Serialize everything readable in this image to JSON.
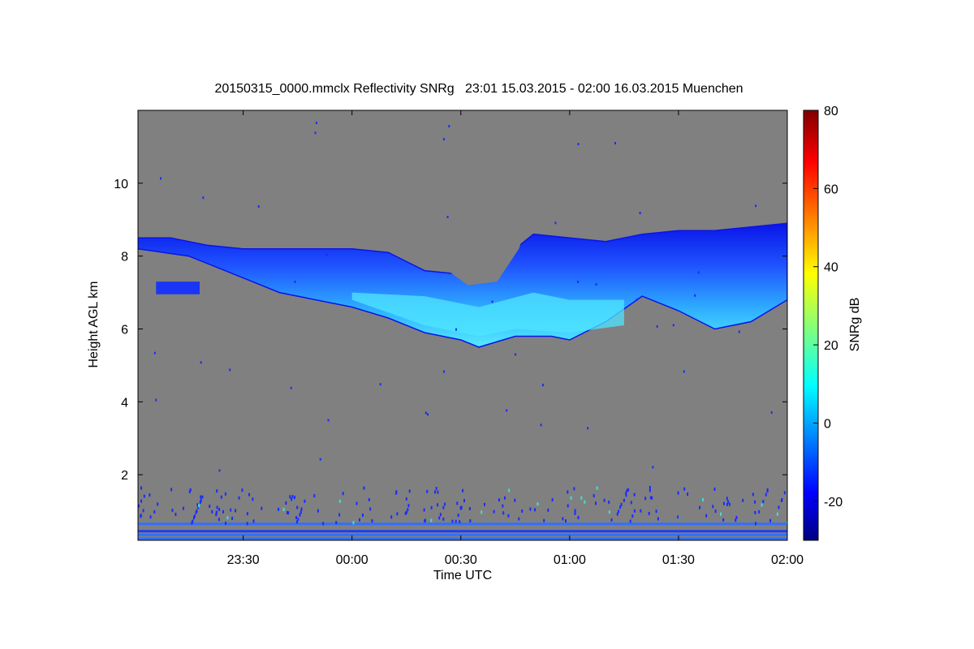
{
  "chart_data": {
    "type": "heatmap",
    "title": "20150315_0000.mmclx Reflectivity SNRg   23:01 15.03.2015 - 02:00 16.03.2015 Muenchen",
    "xlabel": "Time UTC",
    "ylabel": "Height AGL km",
    "colorbar_label": "SNRg dB",
    "x_range_minutes_from_midnight": [
      -59,
      120
    ],
    "x_ticks": [
      {
        "label": "23:30",
        "minutes": -30
      },
      {
        "label": "00:00",
        "minutes": 0
      },
      {
        "label": "00:30",
        "minutes": 30
      },
      {
        "label": "01:00",
        "minutes": 60
      },
      {
        "label": "01:30",
        "minutes": 90
      },
      {
        "label": "02:00",
        "minutes": 120
      }
    ],
    "y_range_km": [
      0.2,
      12.0
    ],
    "y_ticks": [
      {
        "label": "2",
        "value": 2
      },
      {
        "label": "4",
        "value": 4
      },
      {
        "label": "6",
        "value": 6
      },
      {
        "label": "8",
        "value": 8
      },
      {
        "label": "10",
        "value": 10
      }
    ],
    "colorbar_range_db": [
      -30,
      80
    ],
    "colorbar_ticks": [
      {
        "label": "-20",
        "value": -20
      },
      {
        "label": "0",
        "value": 0
      },
      {
        "label": "20",
        "value": 20
      },
      {
        "label": "40",
        "value": 40
      },
      {
        "label": "60",
        "value": 60
      },
      {
        "label": "80",
        "value": 80
      }
    ],
    "colormap": "jet",
    "background_color": "#808080",
    "cloud_layer": {
      "description_values": "main echo between ~5.5 and ~8.8 km",
      "top_km": [
        {
          "t": -59,
          "h": 8.5
        },
        {
          "t": -50,
          "h": 8.5
        },
        {
          "t": -40,
          "h": 8.3
        },
        {
          "t": -30,
          "h": 8.2
        },
        {
          "t": -20,
          "h": 8.2
        },
        {
          "t": -10,
          "h": 8.2
        },
        {
          "t": 0,
          "h": 8.2
        },
        {
          "t": 10,
          "h": 8.1
        },
        {
          "t": 20,
          "h": 7.6
        },
        {
          "t": 30,
          "h": 7.5
        },
        {
          "t": 40,
          "h": 7.6
        },
        {
          "t": 45,
          "h": 8.2
        },
        {
          "t": 50,
          "h": 8.6
        },
        {
          "t": 60,
          "h": 8.5
        },
        {
          "t": 70,
          "h": 8.4
        },
        {
          "t": 80,
          "h": 8.6
        },
        {
          "t": 90,
          "h": 8.7
        },
        {
          "t": 100,
          "h": 8.7
        },
        {
          "t": 110,
          "h": 8.8
        },
        {
          "t": 120,
          "h": 8.9
        }
      ],
      "base_km": [
        {
          "t": -40,
          "h": 7.8
        },
        {
          "t": -30,
          "h": 7.4
        },
        {
          "t": -20,
          "h": 7.0
        },
        {
          "t": -10,
          "h": 6.8
        },
        {
          "t": 0,
          "h": 6.6
        },
        {
          "t": 10,
          "h": 6.3
        },
        {
          "t": 20,
          "h": 5.9
        },
        {
          "t": 30,
          "h": 5.7
        },
        {
          "t": 35,
          "h": 5.5
        },
        {
          "t": 45,
          "h": 5.8
        },
        {
          "t": 55,
          "h": 5.8
        },
        {
          "t": 60,
          "h": 5.7
        },
        {
          "t": 70,
          "h": 6.2
        },
        {
          "t": 80,
          "h": 6.9
        },
        {
          "t": 90,
          "h": 6.5
        },
        {
          "t": 100,
          "h": 6.0
        },
        {
          "t": 110,
          "h": 6.2
        },
        {
          "t": 120,
          "h": 6.8
        }
      ],
      "peak_snr_db": 8
    },
    "near_ground_bands_km": [
      0.25,
      0.35,
      0.45,
      0.65
    ]
  }
}
